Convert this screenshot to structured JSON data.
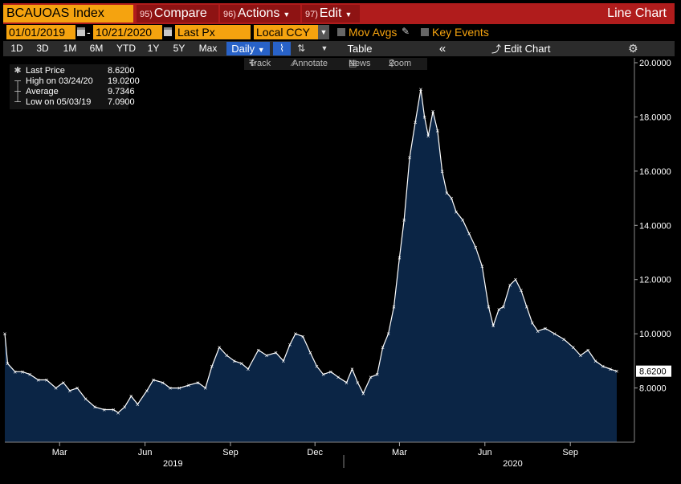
{
  "header": {
    "ticker": "BCAUOAS Index",
    "compare": {
      "num": "95)",
      "label": "Compare"
    },
    "actions": {
      "num": "96)",
      "label": "Actions"
    },
    "edit": {
      "num": "97)",
      "label": "Edit"
    },
    "chart_type": "Line Chart"
  },
  "controls": {
    "start_date": "01/01/2019",
    "end_date": "10/21/2020",
    "field": "Last Px",
    "currency": "Local CCY",
    "mov_avgs": "Mov Avgs",
    "key_events": "Key Events"
  },
  "ranges": [
    "1D",
    "3D",
    "1M",
    "6M",
    "YTD",
    "1Y",
    "5Y",
    "Max"
  ],
  "period": "Daily",
  "table_label": "Table",
  "edit_chart": "Edit Chart",
  "tools": {
    "track": "Track",
    "annotate": "Annotate",
    "news": "News",
    "zoom": "Zoom"
  },
  "legend": [
    {
      "label": "Last Price",
      "value": "8.6200"
    },
    {
      "label": "High on 03/24/20",
      "value": "19.0200"
    },
    {
      "label": "Average",
      "value": "9.7346"
    },
    {
      "label": "Low on 05/03/19",
      "value": "7.0900"
    }
  ],
  "colors": {
    "line": "#ffffff",
    "fill": "#0b2545",
    "accent": "#f5a30f",
    "header": "#b01c1c"
  },
  "chart_data": {
    "type": "area",
    "y_ticks": [
      "8.0000",
      "10.0000",
      "12.0000",
      "14.0000",
      "16.0000",
      "18.0000",
      "20.0000"
    ],
    "ylim": [
      6.0,
      20.0
    ],
    "xlim": [
      "2019-01-01",
      "2020-10-21"
    ],
    "x_ticks": [
      {
        "date": "2019-03-01",
        "label": "Mar"
      },
      {
        "date": "2019-06-01",
        "label": "Jun"
      },
      {
        "date": "2019-09-01",
        "label": "Sep"
      },
      {
        "date": "2019-12-01",
        "label": "Dec"
      },
      {
        "date": "2020-03-01",
        "label": "Mar"
      },
      {
        "date": "2020-06-01",
        "label": "Jun"
      },
      {
        "date": "2020-09-01",
        "label": "Sep"
      }
    ],
    "year_labels": [
      {
        "date": "2019-07-01",
        "label": "2019"
      },
      {
        "date": "2020-07-01",
        "label": "2020"
      }
    ],
    "last_value_label": "8.6200",
    "series": [
      {
        "points": [
          [
            "2019-01-01",
            10.0
          ],
          [
            "2019-01-04",
            8.9
          ],
          [
            "2019-01-12",
            8.6
          ],
          [
            "2019-01-20",
            8.6
          ],
          [
            "2019-01-28",
            8.5
          ],
          [
            "2019-02-06",
            8.3
          ],
          [
            "2019-02-15",
            8.3
          ],
          [
            "2019-02-25",
            8.0
          ],
          [
            "2019-03-05",
            8.2
          ],
          [
            "2019-03-12",
            7.9
          ],
          [
            "2019-03-20",
            8.0
          ],
          [
            "2019-03-29",
            7.6
          ],
          [
            "2019-04-08",
            7.3
          ],
          [
            "2019-04-18",
            7.2
          ],
          [
            "2019-04-28",
            7.2
          ],
          [
            "2019-05-03",
            7.09
          ],
          [
            "2019-05-10",
            7.3
          ],
          [
            "2019-05-17",
            7.7
          ],
          [
            "2019-05-24",
            7.4
          ],
          [
            "2019-06-03",
            7.9
          ],
          [
            "2019-06-10",
            8.3
          ],
          [
            "2019-06-20",
            8.2
          ],
          [
            "2019-06-28",
            8.0
          ],
          [
            "2019-07-08",
            8.0
          ],
          [
            "2019-07-18",
            8.1
          ],
          [
            "2019-07-28",
            8.2
          ],
          [
            "2019-08-05",
            8.0
          ],
          [
            "2019-08-12",
            8.8
          ],
          [
            "2019-08-20",
            9.5
          ],
          [
            "2019-08-28",
            9.2
          ],
          [
            "2019-09-05",
            9.0
          ],
          [
            "2019-09-13",
            8.9
          ],
          [
            "2019-09-20",
            8.7
          ],
          [
            "2019-10-01",
            9.4
          ],
          [
            "2019-10-10",
            9.2
          ],
          [
            "2019-10-20",
            9.3
          ],
          [
            "2019-10-28",
            9.0
          ],
          [
            "2019-11-04",
            9.6
          ],
          [
            "2019-11-10",
            10.0
          ],
          [
            "2019-11-18",
            9.9
          ],
          [
            "2019-11-26",
            9.3
          ],
          [
            "2019-12-03",
            8.8
          ],
          [
            "2019-12-10",
            8.5
          ],
          [
            "2019-12-18",
            8.6
          ],
          [
            "2019-12-26",
            8.4
          ],
          [
            "2020-01-04",
            8.2
          ],
          [
            "2020-01-10",
            8.7
          ],
          [
            "2020-01-16",
            8.2
          ],
          [
            "2020-01-22",
            7.8
          ],
          [
            "2020-01-30",
            8.4
          ],
          [
            "2020-02-06",
            8.5
          ],
          [
            "2020-02-12",
            9.5
          ],
          [
            "2020-02-18",
            10.0
          ],
          [
            "2020-02-24",
            11.0
          ],
          [
            "2020-03-01",
            12.8
          ],
          [
            "2020-03-06",
            14.2
          ],
          [
            "2020-03-12",
            16.5
          ],
          [
            "2020-03-18",
            17.8
          ],
          [
            "2020-03-24",
            19.02
          ],
          [
            "2020-03-28",
            18.0
          ],
          [
            "2020-04-01",
            17.3
          ],
          [
            "2020-04-06",
            18.2
          ],
          [
            "2020-04-11",
            17.5
          ],
          [
            "2020-04-16",
            16.0
          ],
          [
            "2020-04-21",
            15.2
          ],
          [
            "2020-04-26",
            15.0
          ],
          [
            "2020-05-01",
            14.5
          ],
          [
            "2020-05-08",
            14.2
          ],
          [
            "2020-05-15",
            13.7
          ],
          [
            "2020-05-22",
            13.2
          ],
          [
            "2020-05-29",
            12.5
          ],
          [
            "2020-06-05",
            11.0
          ],
          [
            "2020-06-10",
            10.3
          ],
          [
            "2020-06-16",
            10.9
          ],
          [
            "2020-06-21",
            11.0
          ],
          [
            "2020-06-28",
            11.8
          ],
          [
            "2020-07-04",
            12.0
          ],
          [
            "2020-07-10",
            11.6
          ],
          [
            "2020-07-16",
            11.0
          ],
          [
            "2020-07-22",
            10.4
          ],
          [
            "2020-07-28",
            10.1
          ],
          [
            "2020-08-05",
            10.2
          ],
          [
            "2020-08-15",
            10.0
          ],
          [
            "2020-08-25",
            9.8
          ],
          [
            "2020-09-04",
            9.5
          ],
          [
            "2020-09-12",
            9.2
          ],
          [
            "2020-09-20",
            9.4
          ],
          [
            "2020-09-28",
            9.0
          ],
          [
            "2020-10-06",
            8.8
          ],
          [
            "2020-10-14",
            8.7
          ],
          [
            "2020-10-21",
            8.62
          ]
        ]
      }
    ]
  }
}
